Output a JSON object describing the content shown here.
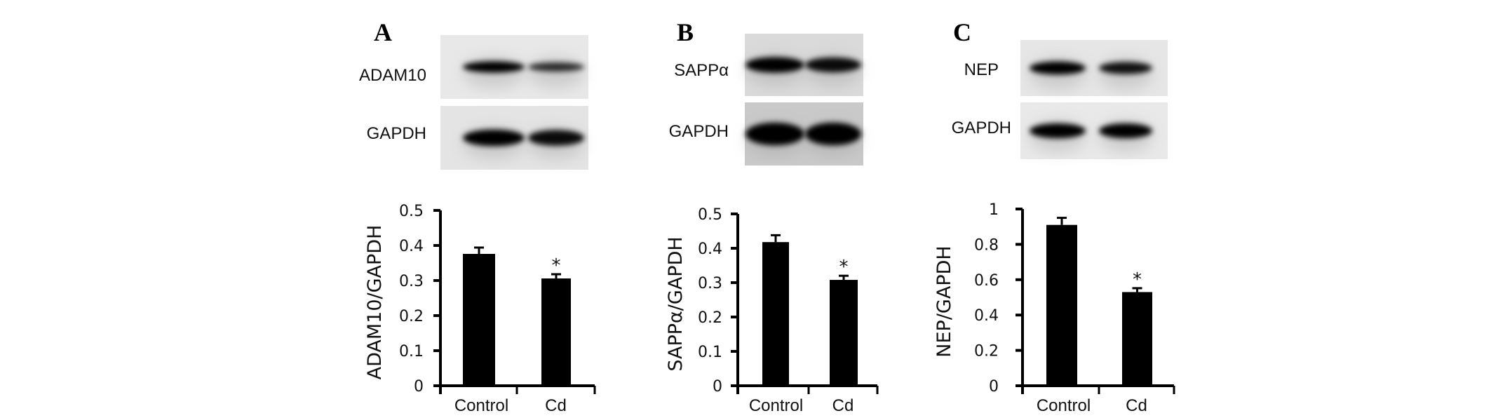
{
  "panels": [
    {
      "letter": "A",
      "blot_labels": [
        "ADAM10",
        "GAPDH"
      ]
    },
    {
      "letter": "B",
      "blot_labels": [
        "SAPPα",
        "GAPDH"
      ]
    },
    {
      "letter": "C",
      "blot_labels": [
        "NEP",
        "GAPDH"
      ]
    }
  ],
  "colors": {
    "bar": "#000000",
    "blot_background": "#e6e6e6",
    "band": "#050505"
  },
  "chart_data": [
    {
      "type": "bar",
      "ylabel": "ADAM10/GAPDH",
      "categories": [
        "Control",
        "Cd"
      ],
      "values": [
        0.376,
        0.306
      ],
      "errors": [
        0.018,
        0.012
      ],
      "significance": [
        "",
        "*"
      ],
      "ylim": [
        0,
        0.5
      ],
      "yticks": [
        "0",
        "0.1",
        "0.2",
        "0.3",
        "0.4",
        "0.5"
      ],
      "grid": false
    },
    {
      "type": "bar",
      "ylabel": "SAPPα/GAPDH",
      "categories": [
        "Control",
        "Cd"
      ],
      "values": [
        0.418,
        0.308
      ],
      "errors": [
        0.02,
        0.012
      ],
      "significance": [
        "",
        "*"
      ],
      "ylim": [
        0,
        0.5
      ],
      "yticks": [
        "0",
        "0.1",
        "0.2",
        "0.3",
        "0.4",
        "0.5"
      ],
      "grid": false
    },
    {
      "type": "bar",
      "ylabel": "NEP/GAPDH",
      "categories": [
        "Control",
        "Cd"
      ],
      "values": [
        0.91,
        0.53
      ],
      "errors": [
        0.04,
        0.022
      ],
      "significance": [
        "",
        "*"
      ],
      "ylim": [
        0,
        1
      ],
      "yticks": [
        "0",
        "0.2",
        "0.4",
        "0.6",
        "0.8",
        "1"
      ],
      "grid": false
    }
  ]
}
